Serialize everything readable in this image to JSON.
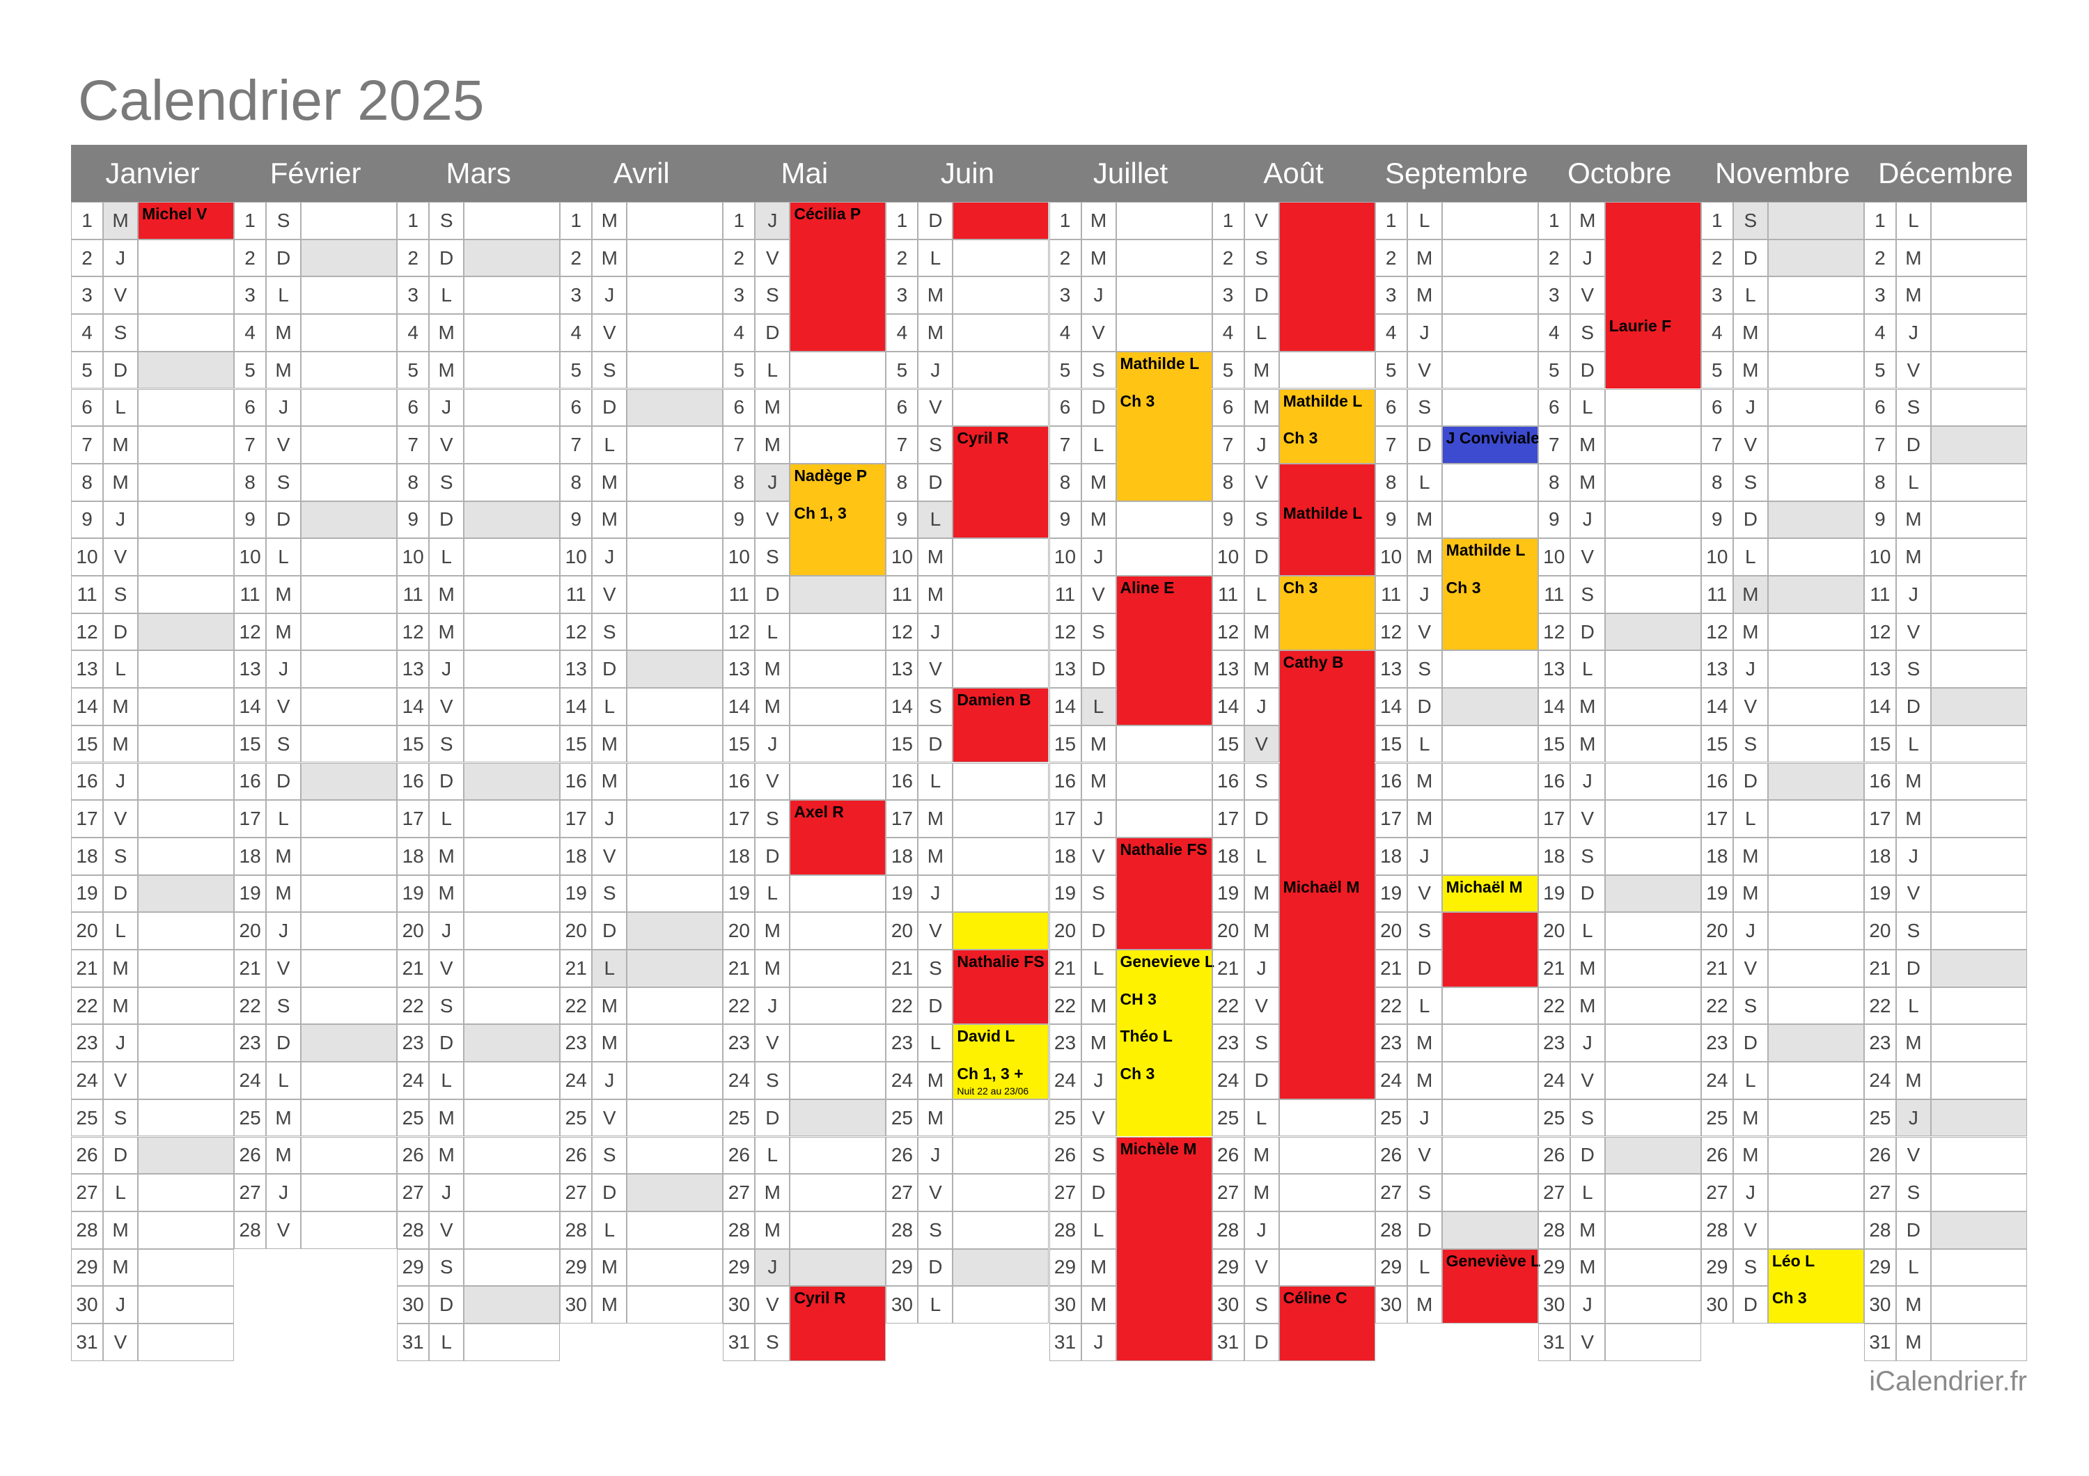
{
  "title": "Calendrier 2025",
  "footer": "iCalendrier.fr",
  "months": [
    {
      "name": "Janvier",
      "numbers": [
        1,
        2,
        3,
        4,
        5,
        6,
        7,
        8,
        9,
        10,
        11,
        12,
        13,
        14,
        15,
        16,
        17,
        18,
        19,
        20,
        21,
        22,
        23,
        24,
        25,
        26,
        27,
        28,
        29,
        30,
        31
      ],
      "letters": [
        "M",
        "J",
        "V",
        "S",
        "D",
        "L",
        "M",
        "M",
        "J",
        "V",
        "S",
        "D",
        "L",
        "M",
        "M",
        "J",
        "V",
        "S",
        "D",
        "L",
        "M",
        "M",
        "J",
        "V",
        "S",
        "D",
        "L",
        "M",
        "M",
        "J",
        "V"
      ],
      "shaded": [
        5,
        12,
        19,
        26
      ],
      "holidays": [
        1
      ],
      "events": [
        {
          "from": 1,
          "to": 1,
          "color": "#ee1c24",
          "labels": [
            {
              "day": 1,
              "text": "Michel V"
            }
          ]
        }
      ]
    },
    {
      "name": "Février",
      "numbers": [
        1,
        2,
        3,
        4,
        5,
        6,
        7,
        8,
        9,
        10,
        11,
        12,
        13,
        14,
        15,
        16,
        17,
        18,
        19,
        20,
        21,
        22,
        23,
        24,
        25,
        26,
        27,
        28
      ],
      "letters": [
        "S",
        "D",
        "L",
        "M",
        "M",
        "J",
        "V",
        "S",
        "D",
        "L",
        "M",
        "M",
        "J",
        "V",
        "S",
        "D",
        "L",
        "M",
        "M",
        "J",
        "V",
        "S",
        "D",
        "L",
        "M",
        "M",
        "J",
        "V"
      ],
      "shaded": [
        2,
        9,
        16,
        23
      ],
      "holidays": [],
      "events": []
    },
    {
      "name": "Mars",
      "numbers": [
        1,
        2,
        3,
        4,
        5,
        6,
        7,
        8,
        9,
        10,
        11,
        12,
        13,
        14,
        15,
        16,
        17,
        18,
        19,
        20,
        21,
        22,
        23,
        24,
        25,
        26,
        27,
        28,
        29,
        30,
        31
      ],
      "letters": [
        "S",
        "D",
        "L",
        "M",
        "M",
        "J",
        "V",
        "S",
        "D",
        "L",
        "M",
        "M",
        "J",
        "V",
        "S",
        "D",
        "L",
        "M",
        "M",
        "J",
        "V",
        "S",
        "D",
        "L",
        "M",
        "M",
        "J",
        "V",
        "S",
        "D",
        "L"
      ],
      "shaded": [
        2,
        9,
        16,
        23,
        30
      ],
      "holidays": [],
      "events": []
    },
    {
      "name": "Avril",
      "numbers": [
        1,
        2,
        3,
        4,
        5,
        6,
        7,
        8,
        9,
        10,
        11,
        12,
        13,
        14,
        15,
        16,
        17,
        18,
        19,
        20,
        21,
        22,
        23,
        24,
        25,
        26,
        27,
        28,
        29,
        30
      ],
      "letters": [
        "M",
        "M",
        "J",
        "V",
        "S",
        "D",
        "L",
        "M",
        "M",
        "J",
        "V",
        "S",
        "D",
        "L",
        "M",
        "M",
        "J",
        "V",
        "S",
        "D",
        "L",
        "M",
        "M",
        "J",
        "V",
        "S",
        "D",
        "L",
        "M",
        "M"
      ],
      "shaded": [
        6,
        13,
        20,
        27,
        21
      ],
      "holidays": [
        21
      ],
      "events": []
    },
    {
      "name": "Mai",
      "numbers": [
        1,
        2,
        3,
        4,
        5,
        6,
        7,
        8,
        9,
        10,
        11,
        12,
        13,
        14,
        15,
        16,
        17,
        18,
        19,
        20,
        21,
        22,
        23,
        24,
        25,
        26,
        27,
        28,
        29,
        30,
        31
      ],
      "letters": [
        "J",
        "V",
        "S",
        "D",
        "L",
        "M",
        "M",
        "J",
        "V",
        "S",
        "D",
        "L",
        "M",
        "M",
        "J",
        "V",
        "S",
        "D",
        "L",
        "M",
        "M",
        "J",
        "V",
        "S",
        "D",
        "L",
        "M",
        "M",
        "J",
        "V",
        "S"
      ],
      "shaded": [
        4,
        11,
        18,
        25,
        1,
        8,
        29
      ],
      "holidays": [
        1,
        8,
        29
      ],
      "events": [
        {
          "from": 1,
          "to": 4,
          "color": "#ee1c24",
          "labels": [
            {
              "day": 1,
              "text": "Cécilia P"
            }
          ]
        },
        {
          "from": 8,
          "to": 10,
          "color": "#ffc414",
          "labels": [
            {
              "day": 8,
              "text": "Nadège P"
            },
            {
              "day": 9,
              "text": "Ch 1, 3"
            }
          ]
        },
        {
          "from": 17,
          "to": 18,
          "color": "#ee1c24",
          "labels": [
            {
              "day": 17,
              "text": "Axel  R"
            }
          ]
        },
        {
          "from": 30,
          "to": 31,
          "color": "#ee1c24",
          "labels": [
            {
              "day": 30,
              "text": "Cyril R"
            }
          ]
        }
      ]
    },
    {
      "name": "Juin",
      "numbers": [
        1,
        2,
        3,
        4,
        5,
        6,
        7,
        8,
        9,
        10,
        11,
        12,
        13,
        14,
        15,
        16,
        17,
        18,
        19,
        20,
        21,
        22,
        23,
        24,
        25,
        26,
        27,
        28,
        29,
        30
      ],
      "letters": [
        "D",
        "L",
        "M",
        "M",
        "J",
        "V",
        "S",
        "D",
        "L",
        "M",
        "M",
        "J",
        "V",
        "S",
        "D",
        "L",
        "M",
        "M",
        "J",
        "V",
        "S",
        "D",
        "L",
        "M",
        "M",
        "J",
        "V",
        "S",
        "D",
        "L"
      ],
      "shaded": [
        1,
        8,
        15,
        22,
        29,
        9
      ],
      "holidays": [
        9
      ],
      "events": [
        {
          "from": 1,
          "to": 1,
          "color": "#ee1c24",
          "labels": []
        },
        {
          "from": 7,
          "to": 9,
          "color": "#ee1c24",
          "labels": [
            {
              "day": 7,
              "text": "Cyril R"
            }
          ]
        },
        {
          "from": 14,
          "to": 15,
          "color": "#ee1c24",
          "labels": [
            {
              "day": 14,
              "text": "Damien B"
            }
          ]
        },
        {
          "from": 20,
          "to": 20,
          "color": "#fff200",
          "labels": []
        },
        {
          "from": 21,
          "to": 22,
          "color": "#ee1c24",
          "labels": [
            {
              "day": 21,
              "text": "Nathalie FS"
            }
          ]
        },
        {
          "from": 23,
          "to": 24,
          "color": "#fff200",
          "labels": [
            {
              "day": 23,
              "text": "David L"
            },
            {
              "day": 24,
              "text": "Ch 1, 3 +"
            },
            {
              "day": 24,
              "text": "Nuit 22 au 23/06",
              "size": "small"
            }
          ]
        }
      ]
    },
    {
      "name": "Juillet",
      "numbers": [
        1,
        2,
        3,
        4,
        5,
        6,
        7,
        8,
        9,
        10,
        11,
        12,
        13,
        14,
        15,
        16,
        17,
        18,
        19,
        20,
        21,
        22,
        23,
        24,
        25,
        26,
        27,
        28,
        29,
        30,
        31
      ],
      "letters": [
        "M",
        "M",
        "J",
        "V",
        "S",
        "D",
        "L",
        "M",
        "M",
        "J",
        "V",
        "S",
        "D",
        "L",
        "M",
        "M",
        "J",
        "V",
        "S",
        "D",
        "L",
        "M",
        "M",
        "J",
        "V",
        "S",
        "D",
        "L",
        "M",
        "M",
        "J"
      ],
      "shaded": [
        6,
        13,
        20,
        27,
        14
      ],
      "holidays": [
        14
      ],
      "events": [
        {
          "from": 5,
          "to": 8,
          "color": "#ffc414",
          "labels": [
            {
              "day": 5,
              "text": "Mathilde L"
            },
            {
              "day": 6,
              "text": "Ch 3"
            }
          ]
        },
        {
          "from": 11,
          "to": 14,
          "color": "#ee1c24",
          "labels": [
            {
              "day": 11,
              "text": "Aline E"
            }
          ]
        },
        {
          "from": 18,
          "to": 20,
          "color": "#ee1c24",
          "labels": [
            {
              "day": 18,
              "text": "Nathalie FS"
            }
          ]
        },
        {
          "from": 21,
          "to": 25,
          "color": "#fff200",
          "labels": [
            {
              "day": 21,
              "text": "Genevieve L"
            },
            {
              "day": 22,
              "text": "CH 3"
            },
            {
              "day": 23,
              "text": "Théo L"
            },
            {
              "day": 24,
              "text": "Ch 3"
            }
          ]
        },
        {
          "from": 26,
          "to": 31,
          "color": "#ee1c24",
          "labels": [
            {
              "day": 26,
              "text": "Michèle M"
            }
          ]
        }
      ]
    },
    {
      "name": "Août",
      "numbers": [
        1,
        2,
        3,
        4,
        5,
        6,
        7,
        8,
        9,
        10,
        11,
        12,
        13,
        14,
        15,
        16,
        17,
        18,
        19,
        20,
        21,
        22,
        23,
        24,
        25,
        26,
        27,
        28,
        29,
        30,
        31
      ],
      "letters": [
        "V",
        "S",
        "D",
        "L",
        "M",
        "M",
        "J",
        "V",
        "S",
        "D",
        "L",
        "M",
        "M",
        "J",
        "V",
        "S",
        "D",
        "L",
        "M",
        "M",
        "J",
        "V",
        "S",
        "D",
        "L",
        "M",
        "M",
        "J",
        "V",
        "S",
        "D"
      ],
      "shaded": [
        3,
        10,
        17,
        24,
        31,
        15
      ],
      "holidays": [
        15
      ],
      "events": [
        {
          "from": 1,
          "to": 4,
          "color": "#ee1c24",
          "labels": []
        },
        {
          "from": 6,
          "to": 7,
          "color": "#ffc414",
          "labels": [
            {
              "day": 6,
              "text": "Mathilde L"
            },
            {
              "day": 7,
              "text": "Ch 3"
            }
          ]
        },
        {
          "from": 8,
          "to": 10,
          "color": "#ee1c24",
          "labels": [
            {
              "day": 9,
              "text": "Mathilde L"
            }
          ]
        },
        {
          "from": 11,
          "to": 12,
          "color": "#ffc414",
          "labels": [
            {
              "day": 11,
              "text": "Ch 3"
            }
          ]
        },
        {
          "from": 13,
          "to": 24,
          "color": "#ee1c24",
          "labels": [
            {
              "day": 13,
              "text": "Cathy B"
            },
            {
              "day": 19,
              "text": "Michaël M"
            }
          ]
        },
        {
          "from": 30,
          "to": 31,
          "color": "#ee1c24",
          "labels": [
            {
              "day": 30,
              "text": "Céline C"
            }
          ]
        }
      ]
    },
    {
      "name": "Septembre",
      "numbers": [
        1,
        2,
        3,
        4,
        5,
        6,
        7,
        8,
        9,
        10,
        11,
        12,
        13,
        14,
        15,
        16,
        17,
        18,
        19,
        20,
        21,
        22,
        23,
        24,
        25,
        26,
        27,
        28,
        29,
        30
      ],
      "letters": [
        "L",
        "M",
        "M",
        "J",
        "V",
        "S",
        "D",
        "L",
        "M",
        "M",
        "J",
        "V",
        "S",
        "D",
        "L",
        "M",
        "M",
        "J",
        "V",
        "S",
        "D",
        "L",
        "M",
        "M",
        "J",
        "V",
        "S",
        "D",
        "L",
        "M"
      ],
      "shaded": [
        7,
        14,
        21,
        28
      ],
      "holidays": [],
      "events": [
        {
          "from": 7,
          "to": 7,
          "color": "#3c4bd0",
          "labels": [
            {
              "day": 7,
              "text": "J Conviviale"
            }
          ]
        },
        {
          "from": 10,
          "to": 12,
          "color": "#ffc414",
          "labels": [
            {
              "day": 10,
              "text": "Mathilde L"
            },
            {
              "day": 11,
              "text": "Ch 3"
            }
          ]
        },
        {
          "from": 19,
          "to": 19,
          "color": "#fff200",
          "labels": [
            {
              "day": 19,
              "text": "Michaël M"
            }
          ]
        },
        {
          "from": 20,
          "to": 21,
          "color": "#ee1c24",
          "labels": []
        },
        {
          "from": 29,
          "to": 30,
          "color": "#ee1c24",
          "labels": [
            {
              "day": 29,
              "text": "Geneviève L"
            }
          ]
        }
      ]
    },
    {
      "name": "Octobre",
      "numbers": [
        1,
        2,
        3,
        4,
        5,
        6,
        7,
        8,
        9,
        10,
        11,
        12,
        13,
        14,
        15,
        16,
        17,
        18,
        19,
        20,
        21,
        22,
        23,
        24,
        25,
        26,
        27,
        28,
        29,
        30,
        31
      ],
      "letters": [
        "M",
        "J",
        "V",
        "S",
        "D",
        "L",
        "M",
        "M",
        "J",
        "V",
        "S",
        "D",
        "L",
        "M",
        "M",
        "J",
        "V",
        "S",
        "D",
        "L",
        "M",
        "M",
        "J",
        "V",
        "S",
        "D",
        "L",
        "M",
        "M",
        "J",
        "V"
      ],
      "shaded": [
        5,
        12,
        19,
        26
      ],
      "holidays": [],
      "events": [
        {
          "from": 1,
          "to": 5,
          "color": "#ee1c24",
          "labels": [
            {
              "day": 4,
              "text": "Laurie F"
            }
          ]
        }
      ]
    },
    {
      "name": "Novembre",
      "numbers": [
        1,
        2,
        3,
        4,
        5,
        6,
        7,
        8,
        9,
        10,
        11,
        12,
        13,
        14,
        15,
        16,
        17,
        18,
        19,
        20,
        21,
        22,
        23,
        24,
        25,
        26,
        27,
        28,
        29,
        30
      ],
      "letters": [
        "S",
        "D",
        "L",
        "M",
        "M",
        "J",
        "V",
        "S",
        "D",
        "L",
        "M",
        "M",
        "J",
        "V",
        "S",
        "D",
        "L",
        "M",
        "M",
        "J",
        "V",
        "S",
        "D",
        "L",
        "M",
        "M",
        "J",
        "V",
        "S",
        "D"
      ],
      "shaded": [
        2,
        9,
        16,
        23,
        30,
        1,
        11
      ],
      "holidays": [
        1,
        11
      ],
      "events": [
        {
          "from": 29,
          "to": 30,
          "color": "#fff200",
          "labels": [
            {
              "day": 29,
              "text": "Léo L"
            },
            {
              "day": 30,
              "text": "Ch 3"
            }
          ]
        }
      ]
    },
    {
      "name": "Décembre",
      "numbers": [
        1,
        2,
        3,
        4,
        5,
        6,
        7,
        8,
        9,
        10,
        11,
        12,
        13,
        14,
        15,
        16,
        17,
        18,
        19,
        20,
        21,
        22,
        23,
        24,
        25,
        26,
        27,
        28,
        29,
        30,
        31
      ],
      "letters": [
        "L",
        "M",
        "M",
        "J",
        "V",
        "S",
        "D",
        "L",
        "M",
        "M",
        "J",
        "V",
        "S",
        "D",
        "L",
        "M",
        "M",
        "J",
        "V",
        "S",
        "D",
        "L",
        "M",
        "M",
        "J",
        "V",
        "S",
        "D",
        "L",
        "M",
        "M"
      ],
      "shaded": [
        7,
        14,
        21,
        28,
        25
      ],
      "holidays": [
        25
      ],
      "events": []
    }
  ]
}
